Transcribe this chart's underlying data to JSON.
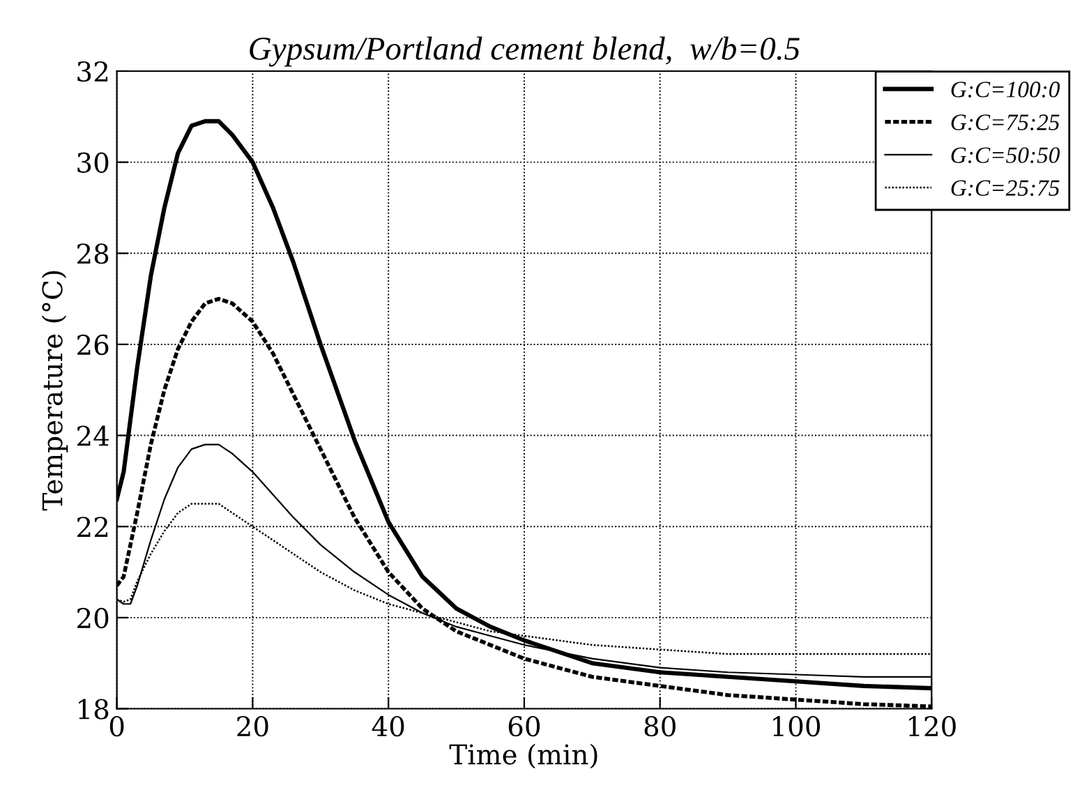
{
  "chart_data": {
    "type": "line",
    "title": "Gypsum/Portland cement blend,  w/b=0.5",
    "xlabel": "Time (min)",
    "ylabel": "Temperature (°C)",
    "xlim": [
      0,
      120
    ],
    "ylim": [
      18,
      32
    ],
    "xticks": [
      0,
      20,
      40,
      60,
      80,
      100,
      120
    ],
    "yticks": [
      18,
      20,
      22,
      24,
      26,
      28,
      30,
      32
    ],
    "grid": true,
    "legend": "top right",
    "marker": "none",
    "series": [
      {
        "name": "G:C=100:0",
        "color": "#000000",
        "line_style": "solid",
        "x": [
          0,
          1,
          3,
          5,
          7,
          9,
          11,
          13,
          15,
          17,
          20,
          23,
          26,
          30,
          35,
          40,
          45,
          50,
          55,
          60,
          70,
          80,
          90,
          100,
          110,
          120
        ],
        "values": [
          22.6,
          23.2,
          25.5,
          27.5,
          29.0,
          30.2,
          30.8,
          30.9,
          30.9,
          30.6,
          30.0,
          29.0,
          27.8,
          26.0,
          23.9,
          22.1,
          20.9,
          20.2,
          19.8,
          19.5,
          19.0,
          18.8,
          18.7,
          18.6,
          18.5,
          18.45
        ]
      },
      {
        "name": "G:C=75:25",
        "color": "#000000",
        "line_style": "dashed",
        "x": [
          0,
          1,
          3,
          5,
          7,
          9,
          11,
          13,
          15,
          17,
          20,
          23,
          26,
          30,
          35,
          40,
          45,
          50,
          55,
          60,
          70,
          80,
          90,
          100,
          110,
          120
        ],
        "values": [
          20.7,
          20.9,
          22.3,
          23.8,
          25.0,
          25.9,
          26.5,
          26.9,
          27.0,
          26.9,
          26.5,
          25.8,
          24.9,
          23.7,
          22.2,
          21.0,
          20.2,
          19.7,
          19.4,
          19.1,
          18.7,
          18.5,
          18.3,
          18.2,
          18.1,
          18.05
        ]
      },
      {
        "name": "G:C=50:50",
        "color": "#000000",
        "line_style": "solid",
        "x": [
          0,
          1,
          2,
          3,
          5,
          7,
          9,
          11,
          13,
          15,
          17,
          20,
          23,
          26,
          30,
          35,
          40,
          45,
          50,
          55,
          60,
          70,
          80,
          90,
          100,
          110,
          120
        ],
        "values": [
          20.4,
          20.3,
          20.3,
          20.7,
          21.7,
          22.6,
          23.3,
          23.7,
          23.8,
          23.8,
          23.6,
          23.2,
          22.7,
          22.2,
          21.6,
          21.0,
          20.5,
          20.1,
          19.8,
          19.6,
          19.4,
          19.1,
          18.9,
          18.8,
          18.75,
          18.7,
          18.7
        ]
      },
      {
        "name": "G:C=25:75",
        "color": "#000000",
        "line_style": "dotted",
        "x": [
          0,
          1,
          2,
          3,
          5,
          7,
          9,
          11,
          13,
          15,
          17,
          20,
          23,
          26,
          30,
          35,
          40,
          45,
          50,
          55,
          60,
          70,
          80,
          90,
          100,
          110,
          120
        ],
        "values": [
          20.4,
          20.35,
          20.4,
          20.8,
          21.4,
          21.9,
          22.3,
          22.5,
          22.5,
          22.5,
          22.3,
          22.0,
          21.7,
          21.4,
          21.0,
          20.6,
          20.3,
          20.1,
          19.9,
          19.7,
          19.6,
          19.4,
          19.3,
          19.2,
          19.2,
          19.2,
          19.2
        ]
      }
    ]
  }
}
